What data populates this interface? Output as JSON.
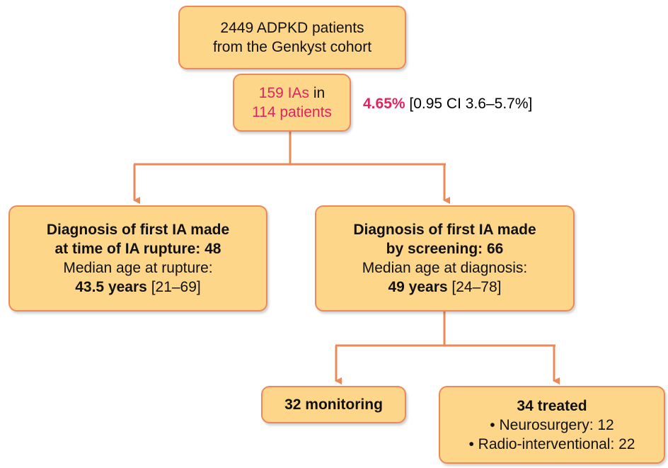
{
  "nodes": [
    {
      "lines": [
        "2449 ADPKD patients",
        "from the Genkyst cohort"
      ]
    },
    {
      "count_ias": "159 IAs",
      "joiner": "in",
      "count_patients": "114 patients"
    },
    {
      "heading": [
        "Diagnosis of first IA made",
        "at time of IA rupture: 48"
      ],
      "label": "Median age at rupture:",
      "value": "43.5 years",
      "range": "[21–69]"
    },
    {
      "heading": [
        "Diagnosis of first IA made",
        "by screening: 66"
      ],
      "label": "Median age at diagnosis:",
      "value": "49 years",
      "range": "[24–78]"
    },
    {
      "heading": "32 monitoring"
    },
    {
      "heading": "34 treated",
      "items": [
        "• Neurosurgery: 12",
        "• Radio-interventional: 22"
      ]
    }
  ],
  "prevalence": {
    "value": "4.65%",
    "ci": "[0.95 CI 3.6–5.7%]"
  }
}
